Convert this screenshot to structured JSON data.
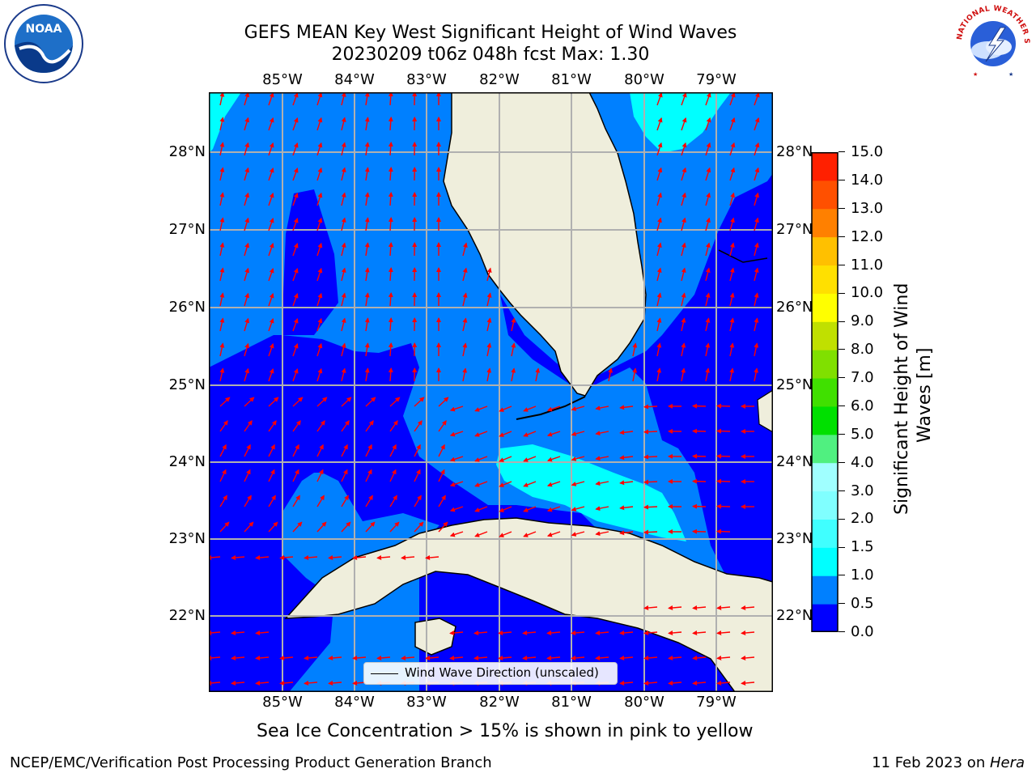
{
  "title": {
    "line1": "GEFS MEAN Key West Significant Height of Wind Waves",
    "line2": "20230209 t06z 048h fcst   Max: 1.30"
  },
  "map": {
    "lon_labels": [
      "85°W",
      "84°W",
      "83°W",
      "82°W",
      "81°W",
      "80°W",
      "79°W"
    ],
    "lat_labels": [
      "28°N",
      "27°N",
      "26°N",
      "25°N",
      "24°N",
      "23°N",
      "22°N"
    ],
    "legend_label": "Wind Wave Direction (unscaled)",
    "land_color": "#efeedc",
    "coast_color": "#000000",
    "grid_color": "#b0b0b0",
    "arrow_color": "#ff0000",
    "arrow_icon": "red-arrow-icon"
  },
  "colorbar": {
    "ticks": [
      "0.0",
      "0.5",
      "1.0",
      "1.5",
      "2.0",
      "3.0",
      "4.0",
      "5.0",
      "6.0",
      "7.0",
      "8.0",
      "9.0",
      "10.0",
      "11.0",
      "12.0",
      "13.0",
      "14.0",
      "15.0"
    ],
    "colors": [
      "#0000ff",
      "#0080ff",
      "#00ffff",
      "#40ffff",
      "#80ffff",
      "#a0ffff",
      "#50f080",
      "#00e000",
      "#40e000",
      "#80e000",
      "#c0e000",
      "#ffff00",
      "#ffe000",
      "#ffc000",
      "#ff8000",
      "#ff5000",
      "#ff2000"
    ],
    "label_line1": "Significant Height of Wind",
    "label_line2": "Waves [m]"
  },
  "note": "Sea Ice Concentration > 15% is shown in pink to yellow",
  "footer": {
    "left": "NCEP/EMC/Verification Post Processing Product Generation Branch",
    "right_prefix": "11 Feb 2023 on ",
    "right_machine": "Hera"
  },
  "logos": {
    "noaa_text": "NOAA",
    "nws_text": "NATIONAL WEATHER SERVICE"
  }
}
